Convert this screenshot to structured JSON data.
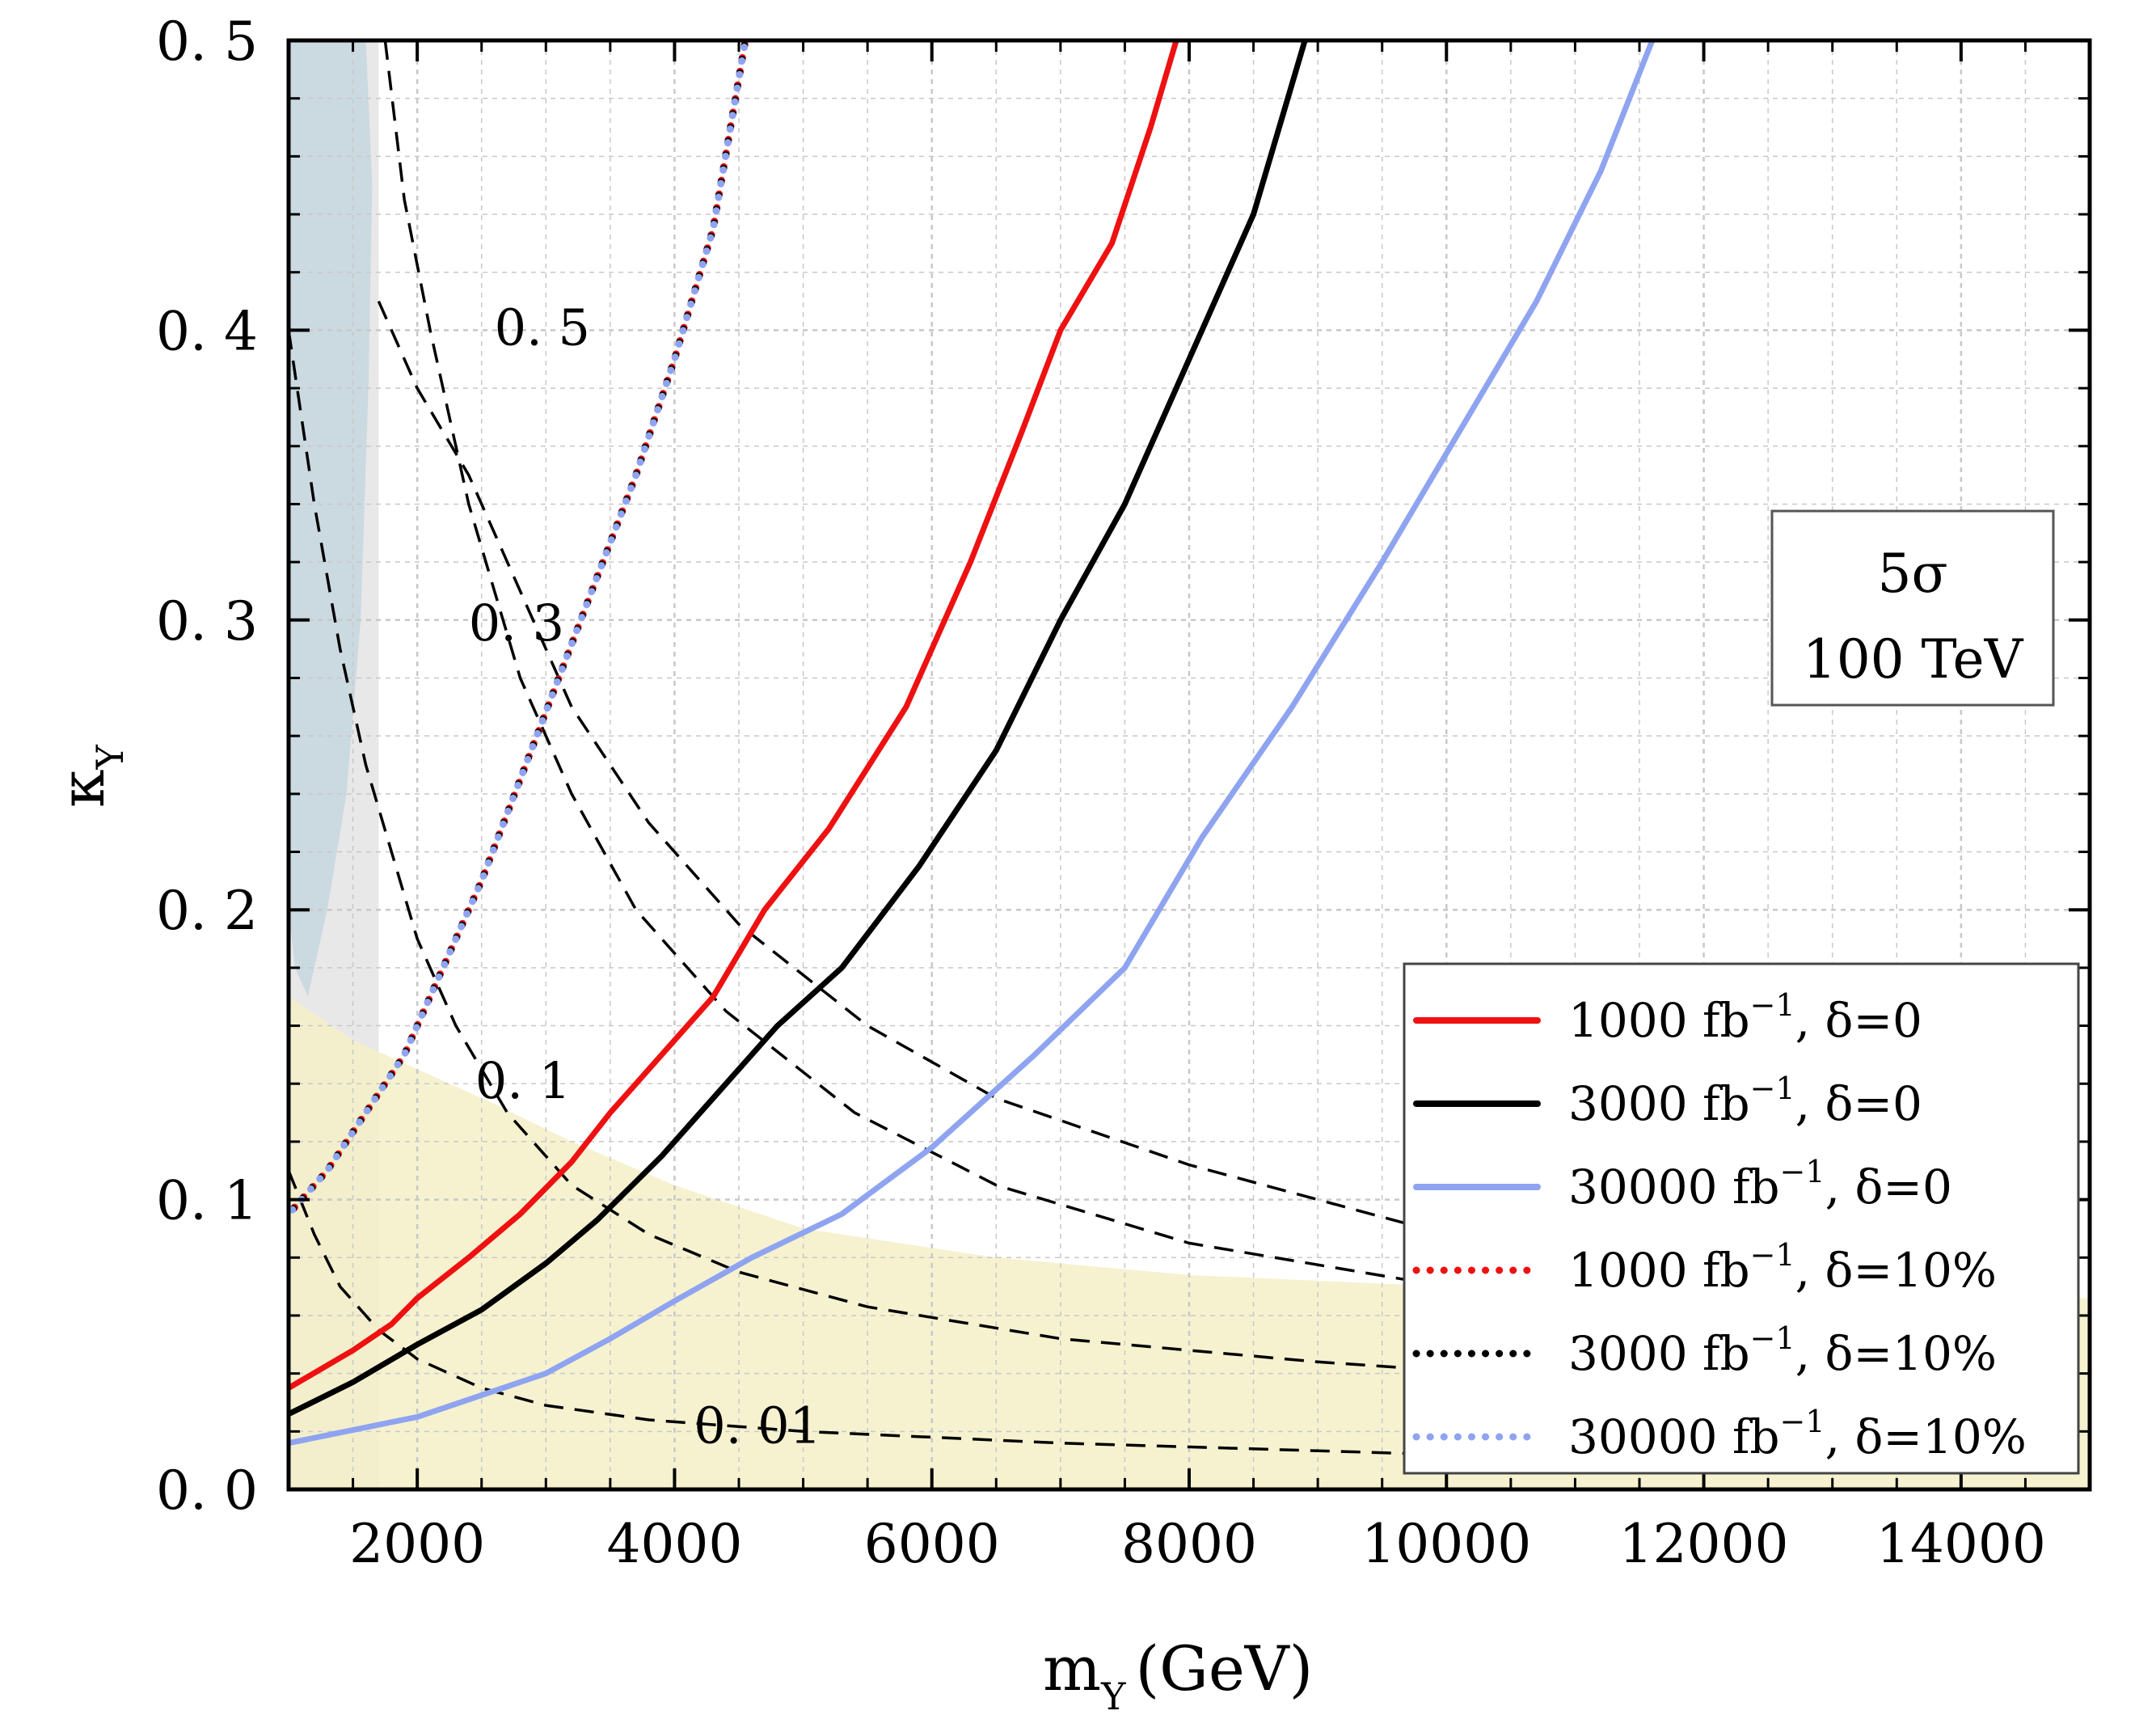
{
  "chart_data": {
    "type": "line",
    "xlabel": "m",
    "xlabel_subscript": "Y",
    "xlabel_unit": "(GeV)",
    "ylabel": "κ",
    "ylabel_subscript": "Y",
    "xlim": [
      1000,
      15000
    ],
    "ylim": [
      0.0,
      0.5
    ],
    "x_ticks": [
      2000,
      4000,
      6000,
      8000,
      10000,
      12000,
      14000
    ],
    "x_tick_labels": [
      "2000",
      "4000",
      "6000",
      "8000",
      "10000",
      "12000",
      "14000"
    ],
    "y_ticks": [
      0.0,
      0.1,
      0.2,
      0.3,
      0.4,
      0.5
    ],
    "y_tick_labels": [
      "0. 0",
      "0. 1",
      "0. 2",
      "0. 3",
      "0. 4",
      "0. 5"
    ],
    "grid": true,
    "annotation_box": {
      "line1": "5σ",
      "line2": "100 TeV"
    },
    "legend_position": "bottom-right",
    "series": [
      {
        "name": "1000 fb⁻¹, δ=0",
        "label_main": "1000 fb",
        "label_sup": "−1",
        "label_tail": ", δ=0",
        "color": "#ee1111",
        "style": "solid",
        "x": [
          1000,
          1500,
          1800,
          2000,
          2400,
          2800,
          3200,
          3500,
          3900,
          4300,
          4700,
          5200,
          5800,
          6300,
          6700,
          7000,
          7400,
          7700,
          7900
        ],
        "y": [
          0.035,
          0.048,
          0.057,
          0.066,
          0.08,
          0.095,
          0.113,
          0.13,
          0.15,
          0.17,
          0.2,
          0.228,
          0.27,
          0.32,
          0.365,
          0.4,
          0.43,
          0.47,
          0.5
        ]
      },
      {
        "name": "3000 fb⁻¹, δ=0",
        "label_main": "3000 fb",
        "label_sup": "−1",
        "label_tail": ", δ=0",
        "color": "#000000",
        "style": "solid",
        "x": [
          1000,
          1500,
          2000,
          2500,
          3000,
          3400,
          3900,
          4400,
          4800,
          5300,
          5900,
          6500,
          7000,
          7500,
          8000,
          8500,
          8900
        ],
        "y": [
          0.026,
          0.037,
          0.05,
          0.062,
          0.078,
          0.093,
          0.115,
          0.14,
          0.16,
          0.18,
          0.215,
          0.255,
          0.3,
          0.34,
          0.39,
          0.44,
          0.5
        ]
      },
      {
        "name": "30000 fb⁻¹, δ=0",
        "label_main": "30000 fb",
        "label_sup": "−1",
        "label_tail": ", δ=0",
        "color": "#8fa4f0",
        "style": "solid",
        "x": [
          1000,
          2000,
          3000,
          3500,
          4000,
          4600,
          5300,
          6000,
          6800,
          7500,
          8100,
          8800,
          9500,
          10100,
          10700,
          11200,
          11600
        ],
        "y": [
          0.016,
          0.025,
          0.04,
          0.052,
          0.065,
          0.08,
          0.095,
          0.118,
          0.15,
          0.18,
          0.225,
          0.27,
          0.32,
          0.365,
          0.41,
          0.455,
          0.5
        ]
      },
      {
        "name": "1000 fb⁻¹, δ=10%",
        "label_main": "1000 fb",
        "label_sup": "−1",
        "label_tail": ", δ=10%",
        "color": "#ee1111",
        "style": "dotted",
        "x": [
          1000,
          1300,
          1600,
          1900,
          2200,
          2500,
          2800,
          3100,
          3400,
          3700,
          4000,
          4300,
          4550
        ],
        "y": [
          0.095,
          0.11,
          0.13,
          0.15,
          0.18,
          0.21,
          0.245,
          0.28,
          0.315,
          0.35,
          0.39,
          0.435,
          0.5
        ]
      },
      {
        "name": "3000 fb⁻¹, δ=10%",
        "label_main": "3000 fb",
        "label_sup": "−1",
        "label_tail": ", δ=10%",
        "color": "#000000",
        "style": "dotted",
        "x": [
          1000,
          1300,
          1600,
          1900,
          2200,
          2500,
          2800,
          3100,
          3400,
          3700,
          4000,
          4300,
          4550
        ],
        "y": [
          0.095,
          0.11,
          0.13,
          0.15,
          0.18,
          0.21,
          0.245,
          0.28,
          0.315,
          0.35,
          0.39,
          0.435,
          0.5
        ]
      },
      {
        "name": "30000 fb⁻¹, δ=10%",
        "label_main": "30000 fb",
        "label_sup": "−1",
        "label_tail": ", δ=10%",
        "color": "#8fa4f0",
        "style": "dotted",
        "x": [
          1000,
          1300,
          1600,
          1900,
          2200,
          2500,
          2800,
          3100,
          3400,
          3700,
          4000,
          4300,
          4550
        ],
        "y": [
          0.095,
          0.11,
          0.13,
          0.15,
          0.18,
          0.21,
          0.245,
          0.28,
          0.315,
          0.35,
          0.39,
          0.435,
          0.5
        ]
      }
    ],
    "contours": [
      {
        "label": "0. 5",
        "label_at": [
          2600,
          0.395
        ],
        "x": [
          1700,
          2000,
          2400,
          2800,
          3200,
          3800,
          4500,
          5500,
          6500,
          8000,
          10000
        ],
        "y": [
          0.41,
          0.38,
          0.35,
          0.31,
          0.27,
          0.23,
          0.195,
          0.16,
          0.135,
          0.112,
          0.088
        ]
      },
      {
        "label": "0. 3",
        "label_at": [
          2400,
          0.293
        ],
        "x": [
          1750,
          1900,
          2100,
          2400,
          2800,
          3200,
          3700,
          4400,
          5400,
          6500,
          8000,
          10000
        ],
        "y": [
          0.5,
          0.445,
          0.4,
          0.34,
          0.28,
          0.24,
          0.2,
          0.165,
          0.13,
          0.105,
          0.085,
          0.07
        ]
      },
      {
        "label": "0. 1",
        "label_at": [
          2450,
          0.135
        ],
        "x": [
          1000,
          1200,
          1400,
          1600,
          1800,
          2000,
          2300,
          2700,
          3200,
          3800,
          4500,
          5500,
          7000,
          9000,
          10000
        ],
        "y": [
          0.4,
          0.34,
          0.29,
          0.25,
          0.22,
          0.19,
          0.16,
          0.13,
          0.105,
          0.088,
          0.075,
          0.063,
          0.052,
          0.044,
          0.041
        ]
      },
      {
        "label": "0. 01",
        "label_at": [
          4150,
          0.016
        ],
        "x": [
          1000,
          1200,
          1400,
          1700,
          2000,
          2500,
          3000,
          3800,
          5000,
          7000,
          10000
        ],
        "y": [
          0.11,
          0.088,
          0.07,
          0.055,
          0.045,
          0.035,
          0.029,
          0.024,
          0.02,
          0.016,
          0.012
        ]
      }
    ],
    "shaded_regions": [
      {
        "name": "blue-excluded",
        "color": "#a9d2ea",
        "x": [
          1000,
          1600,
          1650,
          1620,
          1560,
          1450,
          1300,
          1150,
          1050,
          1000
        ],
        "y": [
          0.5,
          0.5,
          0.45,
          0.38,
          0.3,
          0.24,
          0.2,
          0.17,
          0.18,
          0.2
        ]
      },
      {
        "name": "gray-excluded",
        "color": "#d8d8d8",
        "x": [
          1000,
          1700,
          1700,
          1000
        ],
        "y": [
          0.0,
          0.0,
          0.5,
          0.5
        ]
      },
      {
        "name": "yellow-region",
        "color": "#f5f0c8",
        "x": [
          1000,
          1500,
          2000,
          2600,
          3200,
          4000,
          5000,
          6500,
          8000,
          10000,
          15000,
          15000,
          1000
        ],
        "y": [
          0.17,
          0.155,
          0.145,
          0.133,
          0.12,
          0.105,
          0.09,
          0.08,
          0.074,
          0.07,
          0.066,
          0.0,
          0.0
        ]
      }
    ]
  }
}
